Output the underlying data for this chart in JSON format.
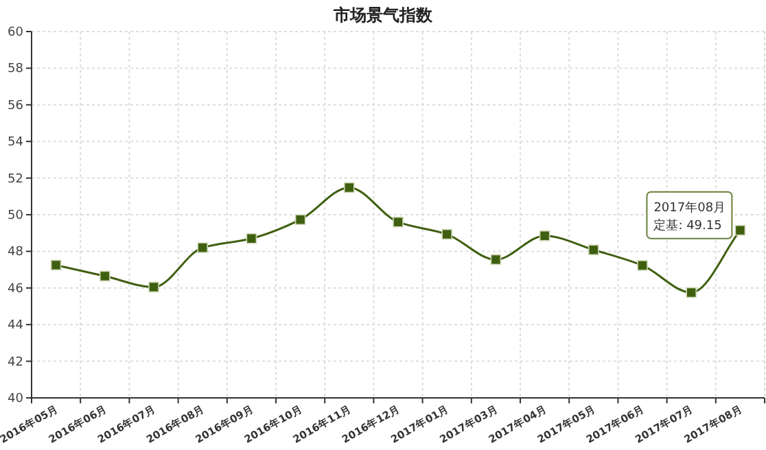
{
  "chart_data": {
    "type": "line",
    "title": "市场景气指数",
    "categories": [
      "2016年05月",
      "2016年06月",
      "2016年07月",
      "2016年08月",
      "2016年09月",
      "2016年10月",
      "2016年11月",
      "2016年12月",
      "2017年01月",
      "2017年03月",
      "2017年04月",
      "2017年05月",
      "2017年06月",
      "2017年07月",
      "2017年08月"
    ],
    "series": [
      {
        "color": "#3f5f10",
        "values": [
          47.25,
          46.65,
          46.05,
          48.2,
          48.7,
          49.73,
          51.48,
          49.6,
          48.93,
          47.55,
          48.85,
          48.08,
          47.23,
          45.75,
          49.15
        ]
      }
    ],
    "ylim": [
      40,
      60
    ],
    "yticks": [
      40,
      42,
      44,
      46,
      48,
      50,
      52,
      54,
      56,
      58,
      60
    ],
    "grid": true,
    "marker": "square",
    "line_style": "solid",
    "annotations": [
      {
        "text": "2017年08月",
        "x": "2017年08月",
        "y": 49.15
      },
      {
        "text": "定基: 49.15",
        "x": "2017年08月",
        "y": 49.15
      }
    ]
  }
}
